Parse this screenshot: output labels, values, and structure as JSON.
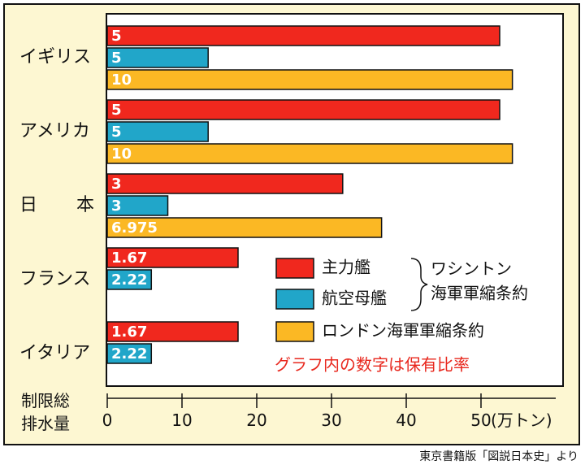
{
  "chart_data": {
    "type": "bar",
    "orientation": "horizontal",
    "categories": [
      "イギリス",
      "アメリカ",
      "日　本",
      "フランス",
      "イタリア"
    ],
    "series": [
      {
        "name": "主力艦",
        "color": "#f0281e",
        "values": [
          52.5,
          52.5,
          31.5,
          17.5,
          17.5
        ],
        "labels": [
          "5",
          "5",
          "3",
          "1.67",
          "1.67"
        ]
      },
      {
        "name": "航空母艦",
        "color": "#21a6c9",
        "values": [
          13.5,
          13.5,
          8.1,
          5.9,
          5.9
        ],
        "labels": [
          "5",
          "5",
          "3",
          "2.22",
          "2.22"
        ]
      },
      {
        "name": "ロンドン海軍軍縮条約",
        "color": "#fbb824",
        "values": [
          54.2,
          54.2,
          36.7,
          null,
          null
        ],
        "labels": [
          "10",
          "10",
          "6.975",
          "",
          ""
        ]
      }
    ],
    "xlim": [
      0,
      60
    ],
    "xticks": [
      "0",
      "10",
      "20",
      "30",
      "40",
      "50"
    ],
    "xunit": "(万トン)",
    "ylabel_lines": [
      "制限総",
      "排水量"
    ],
    "bracket_label_lines": [
      "ワシントン",
      "海軍軍縮条約"
    ],
    "annotation": "グラフ内の数字は保有比率",
    "annotation_color": "#e8281e"
  },
  "source": "東京書籍版「図説日本史」より"
}
